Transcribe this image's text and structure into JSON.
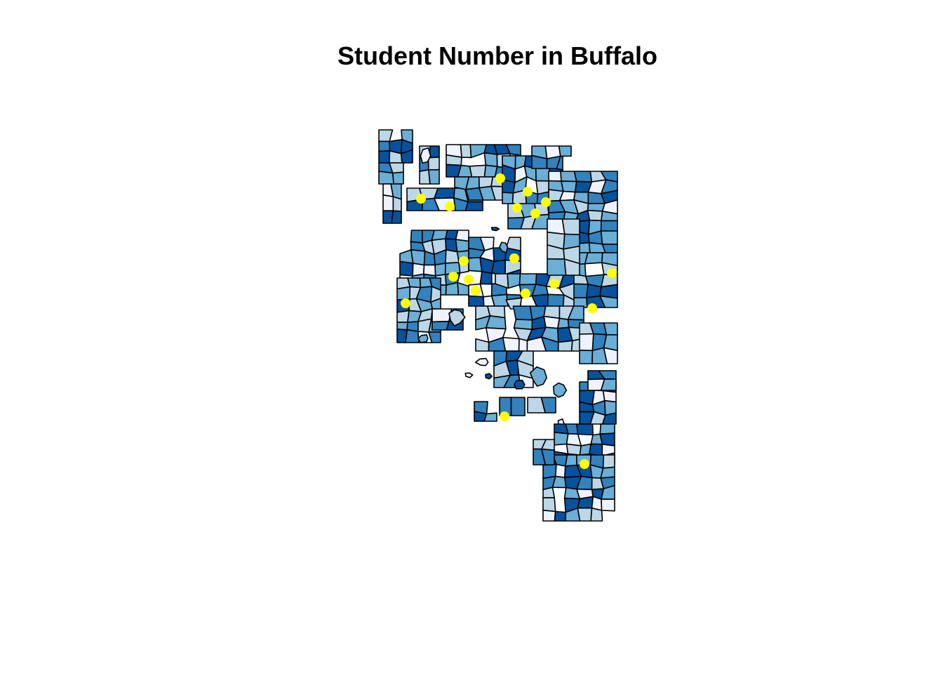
{
  "title": "Student Number in Buffalo",
  "palette": {
    "class_1": "#eff3ff",
    "class_2": "#bdd7e7",
    "class_3": "#6baed6",
    "class_4": "#3182bd",
    "class_5": "#08519c",
    "school_point": "#ffff00",
    "border": "#000000",
    "background": "#ffffff"
  },
  "legend": null,
  "layers": [
    "census-tracts-choropleth",
    "school-points"
  ]
}
